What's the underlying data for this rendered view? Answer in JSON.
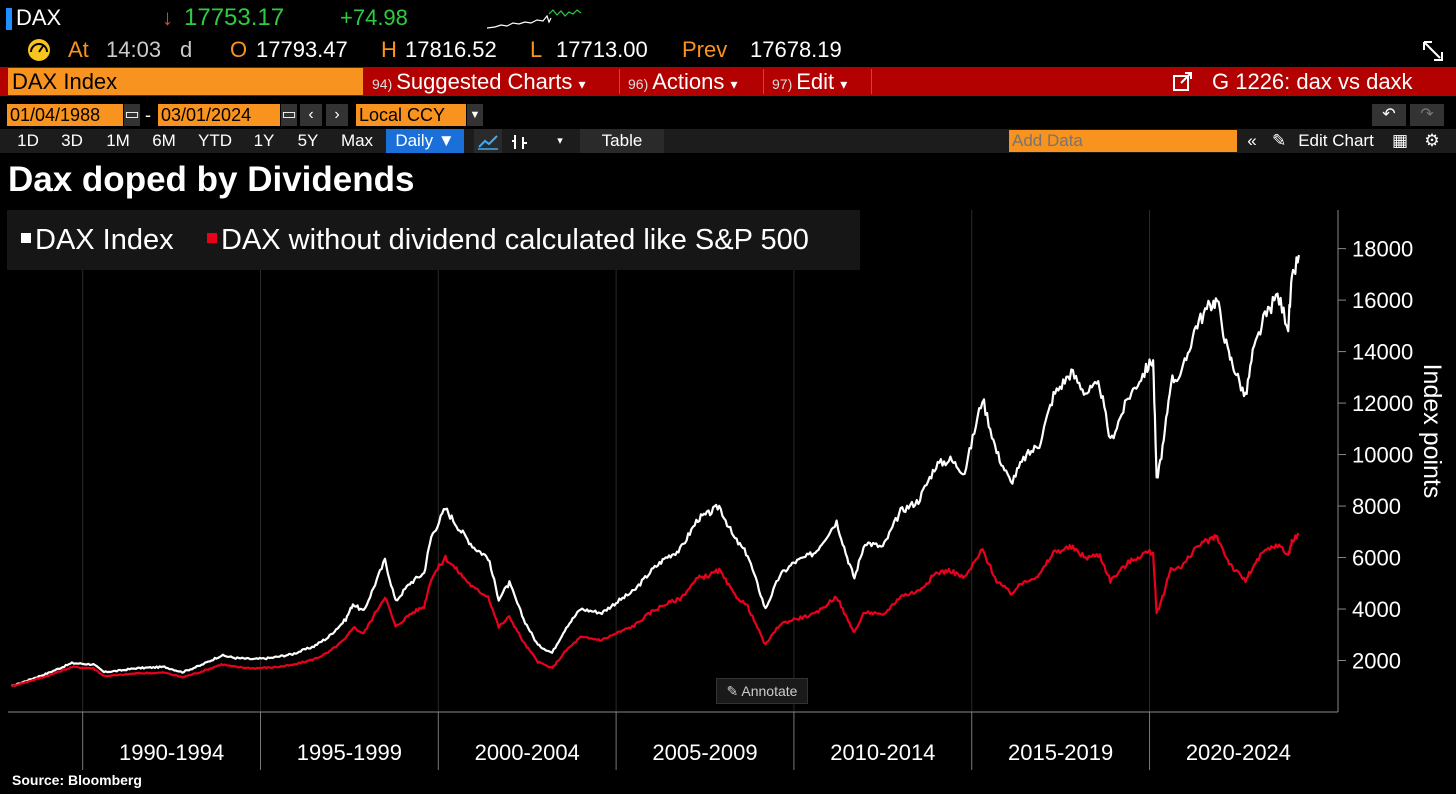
{
  "header": {
    "ticker": "DAX",
    "arrow": "↓",
    "last": "17753.17",
    "change": "+74.98",
    "at_label": "At",
    "time": "14:03",
    "d": "d",
    "o_label": "O",
    "open": "17793.47",
    "h_label": "H",
    "high": "17816.52",
    "l_label": "L",
    "low": "17713.00",
    "prev_label": "Prev",
    "prev": "17678.19"
  },
  "menubar": {
    "security": "DAX Index",
    "suggested_num": "94)",
    "suggested": "Suggested Charts",
    "actions_num": "96)",
    "actions": "Actions",
    "edit_num": "97)",
    "edit": "Edit",
    "chart_id": "G 1226: dax vs daxk"
  },
  "controls": {
    "start_date": "01/04/1988",
    "dash": "-",
    "end_date": "03/01/2024",
    "currency": "Local CCY",
    "periods": [
      "1D",
      "3D",
      "1M",
      "6M",
      "YTD",
      "1Y",
      "5Y",
      "Max"
    ],
    "frequency": "Daily ▼",
    "table": "Table",
    "add_data_placeholder": "Add Data",
    "edit_chart": "Edit Chart",
    "annotate": "Annotate"
  },
  "source": "Source:  Bloomberg",
  "colors": {
    "dax": "#ffffff",
    "dax_ex_div": "#e8001c",
    "menubar": "#b30000",
    "accent": "#f7931e"
  },
  "chart_data": {
    "type": "line",
    "title": "Dax doped by Dividends",
    "ylabel": "Index points",
    "xlabel": "",
    "ylim": [
      0,
      19500
    ],
    "yticks": [
      2000,
      4000,
      6000,
      8000,
      10000,
      12000,
      14000,
      16000,
      18000
    ],
    "xlim": [
      1987.9,
      2025.3
    ],
    "xtick_labels": [
      "1990-1994",
      "1995-1999",
      "2000-2004",
      "2005-2009",
      "2010-2014",
      "2015-2019",
      "2020-2024"
    ],
    "x_boundaries": [
      1990,
      1995,
      2000,
      2005,
      2010,
      2015,
      2020
    ],
    "legend": [
      "DAX Index",
      "DAX without dividend calculated like S&P 500"
    ],
    "series": [
      {
        "name": "DAX Index",
        "x": [
          1988.0,
          1988.5,
          1989.0,
          1989.7,
          1990.3,
          1990.6,
          1991.0,
          1991.5,
          1992.3,
          1992.8,
          1993.3,
          1993.9,
          1994.3,
          1994.8,
          1995.3,
          1995.9,
          1996.5,
          1996.9,
          1997.4,
          1997.6,
          1997.9,
          1998.5,
          1998.8,
          1999.2,
          1999.6,
          1999.8,
          2000.2,
          2000.6,
          2001.0,
          2001.4,
          2001.7,
          2002.0,
          2002.4,
          2002.8,
          2003.2,
          2003.6,
          2004.0,
          2004.6,
          2005.0,
          2005.5,
          2006.0,
          2006.4,
          2006.8,
          2007.3,
          2007.6,
          2007.9,
          2008.3,
          2008.7,
          2009.2,
          2009.6,
          2010.0,
          2010.6,
          2011.2,
          2011.5,
          2011.7,
          2012.0,
          2012.5,
          2013.0,
          2013.5,
          2014.0,
          2014.4,
          2014.8,
          2015.3,
          2015.7,
          2016.1,
          2016.5,
          2016.9,
          2017.3,
          2017.8,
          2018.2,
          2018.6,
          2018.9,
          2019.4,
          2019.9,
          2020.1,
          2020.2,
          2020.4,
          2020.6,
          2020.9,
          2021.3,
          2021.7,
          2021.9,
          2022.2,
          2022.4,
          2022.7,
          2022.9,
          2023.2,
          2023.6,
          2023.9,
          2024.0,
          2024.2
        ],
        "values": [
          1000,
          1250,
          1500,
          1900,
          1850,
          1550,
          1600,
          1700,
          1750,
          1550,
          1800,
          2200,
          2100,
          2050,
          2100,
          2250,
          2550,
          2900,
          3600,
          4200,
          3900,
          5900,
          4300,
          5000,
          5400,
          6800,
          7900,
          7100,
          6400,
          6000,
          4400,
          5000,
          3600,
          2600,
          2300,
          3300,
          4000,
          3850,
          4250,
          4700,
          5500,
          6000,
          6300,
          7500,
          7700,
          8000,
          6800,
          6100,
          4000,
          5300,
          5800,
          6200,
          7400,
          6000,
          5200,
          6600,
          6400,
          7800,
          8200,
          9600,
          9800,
          9300,
          12200,
          10100,
          8900,
          9900,
          10400,
          12300,
          13200,
          12400,
          12700,
          10500,
          12200,
          13300,
          13700,
          9000,
          10500,
          12900,
          13100,
          15000,
          15800,
          16000,
          14000,
          13300,
          12200,
          13900,
          15200,
          16200,
          15000,
          16700,
          17750
        ]
      },
      {
        "name": "DAX without dividend calculated like S&P 500",
        "x": [
          1988.0,
          1988.5,
          1989.0,
          1989.7,
          1990.3,
          1990.6,
          1991.0,
          1991.5,
          1992.3,
          1992.8,
          1993.3,
          1993.9,
          1994.3,
          1994.8,
          1995.3,
          1995.9,
          1996.5,
          1996.9,
          1997.4,
          1997.6,
          1997.9,
          1998.5,
          1998.8,
          1999.2,
          1999.6,
          1999.8,
          2000.2,
          2000.6,
          2001.0,
          2001.4,
          2001.7,
          2002.0,
          2002.4,
          2002.8,
          2003.2,
          2003.6,
          2004.0,
          2004.6,
          2005.0,
          2005.5,
          2006.0,
          2006.4,
          2006.8,
          2007.3,
          2007.6,
          2007.9,
          2008.3,
          2008.7,
          2009.2,
          2009.6,
          2010.0,
          2010.6,
          2011.2,
          2011.5,
          2011.7,
          2012.0,
          2012.5,
          2013.0,
          2013.5,
          2014.0,
          2014.4,
          2014.8,
          2015.3,
          2015.7,
          2016.1,
          2016.5,
          2016.9,
          2017.3,
          2017.8,
          2018.2,
          2018.6,
          2018.9,
          2019.4,
          2019.9,
          2020.1,
          2020.2,
          2020.4,
          2020.6,
          2020.9,
          2021.3,
          2021.7,
          2021.9,
          2022.2,
          2022.4,
          2022.7,
          2022.9,
          2023.2,
          2023.6,
          2023.9,
          2024.0,
          2024.2
        ],
        "values": [
          1000,
          1200,
          1400,
          1750,
          1700,
          1400,
          1430,
          1500,
          1530,
          1350,
          1550,
          1850,
          1750,
          1700,
          1730,
          1820,
          2050,
          2300,
          2850,
          3300,
          3050,
          4500,
          3300,
          3800,
          4100,
          5200,
          6000,
          5400,
          4800,
          4500,
          3300,
          3700,
          2700,
          1950,
          1700,
          2400,
          2900,
          2800,
          3050,
          3350,
          3900,
          4200,
          4400,
          5200,
          5300,
          5500,
          4600,
          4100,
          2600,
          3400,
          3600,
          3800,
          4500,
          3600,
          3100,
          3900,
          3750,
          4500,
          4700,
          5400,
          5500,
          5200,
          6300,
          5100,
          4600,
          5100,
          5300,
          6200,
          6400,
          6000,
          6100,
          5100,
          5800,
          6200,
          6200,
          3800,
          4600,
          5600,
          5600,
          6400,
          6700,
          6800,
          5900,
          5500,
          5100,
          5600,
          6200,
          6500,
          6100,
          6600,
          6900
        ]
      }
    ]
  }
}
